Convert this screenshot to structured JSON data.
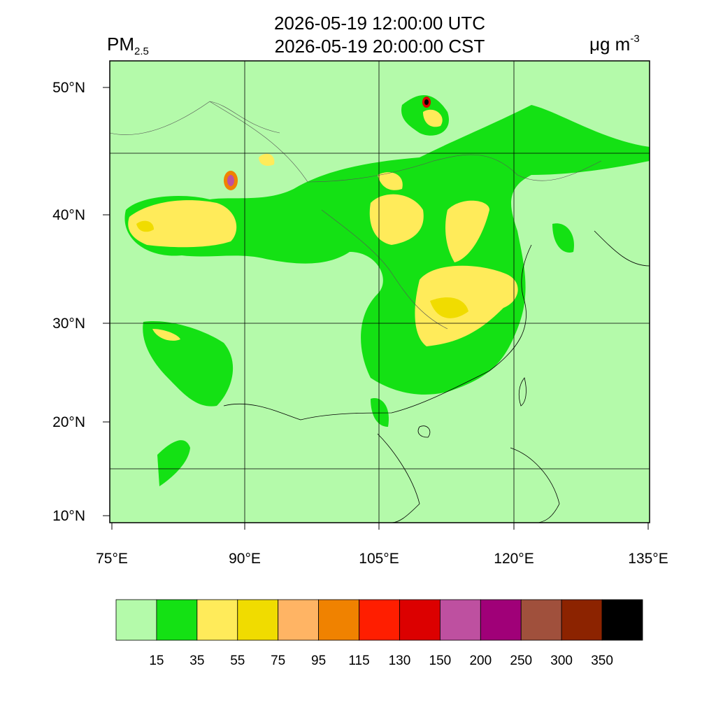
{
  "header": {
    "title_lines": [
      "2026-05-19 12:00:00 UTC",
      "2026-05-19 20:00:00 CST"
    ],
    "left_label": {
      "main": "PM",
      "sub": "2.5"
    },
    "right_label": {
      "main": "μg m",
      "sup": "-3"
    }
  },
  "map": {
    "x_tick_labels": [
      "75°E",
      "90°E",
      "105°E",
      "120°E",
      "135°E"
    ],
    "y_tick_labels": [
      "50°N",
      "40°N",
      "30°N",
      "20°N",
      "10°N"
    ]
  },
  "colorbar": {
    "colors": [
      "#b4faaa",
      "#14e114",
      "#ffeb5a",
      "#f0dc00",
      "#ffb464",
      "#f08200",
      "#ff1e00",
      "#dc0000",
      "#be50a0",
      "#a00078",
      "#a0503c",
      "#8c2300",
      "#000000"
    ],
    "labels": [
      15,
      35,
      55,
      75,
      95,
      115,
      130,
      150,
      200,
      250,
      300,
      350
    ]
  }
}
